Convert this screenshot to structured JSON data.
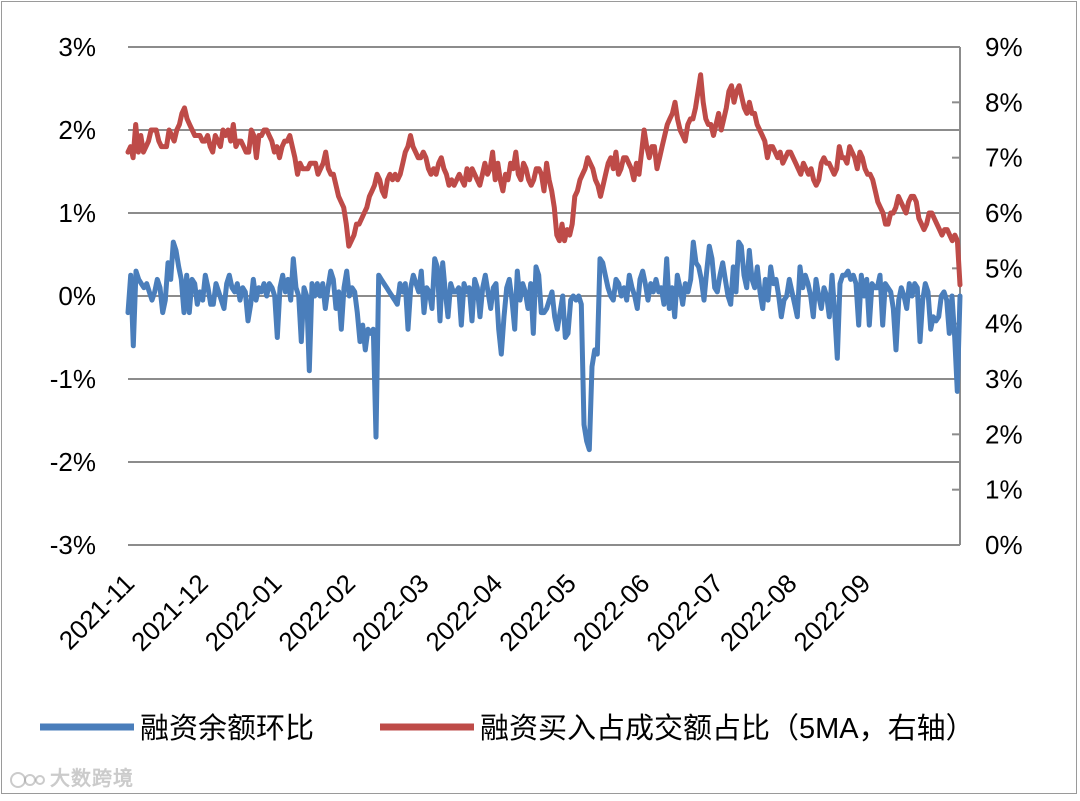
{
  "chart_data": {
    "type": "line",
    "x_ticks": [
      "2021-11",
      "2021-12",
      "2022-01",
      "2022-02",
      "2022-03",
      "2022-04",
      "2022-05",
      "2022-06",
      "2022-07",
      "2022-08",
      "2022-09"
    ],
    "y_left": {
      "ylim": [
        -0.03,
        0.03
      ],
      "ticks": [
        "-3%",
        "-2%",
        "-1%",
        "0%",
        "1%",
        "2%",
        "3%"
      ]
    },
    "y_right": {
      "ylim": [
        0,
        0.09
      ],
      "ticks": [
        "0%",
        "1%",
        "2%",
        "3%",
        "4%",
        "5%",
        "6%",
        "7%",
        "8%",
        "9%"
      ]
    },
    "grid": true,
    "legend_position": "bottom",
    "series": [
      {
        "name": "融资余额环比",
        "axis": "left",
        "color": "#4a7ebb",
        "values": [
          -0.002,
          0.0025,
          -0.006,
          0.003,
          0.002,
          0.0015,
          0.001,
          0.0015,
          0.0005,
          -0.0005,
          0.0005,
          0.002,
          0.001,
          -0.002,
          -0.0005,
          0.004,
          0.002,
          0.0065,
          0.0055,
          0.0035,
          0.002,
          -0.002,
          0.0025,
          -0.002,
          0.002,
          0.0015,
          -0.001,
          0.0005,
          -0.0005,
          0.0025,
          0.001,
          -0.001,
          -0.001,
          0.0015,
          0.0005,
          -0.0005,
          -0.0015,
          0.0015,
          0.0025,
          0.001,
          0.0005,
          0.0015,
          -0.0005,
          0.001,
          0.0005,
          -0.003,
          -0.001,
          0.002,
          -0.0005,
          0.001,
          0.0005,
          0.0015,
          0.0,
          0.0015,
          0.001,
          0.0,
          -0.005,
          0.001,
          0.0025,
          0.0005,
          0.002,
          -0.0005,
          0.0045,
          0.001,
          0.0,
          -0.0055,
          0.001,
          0.0,
          -0.009,
          0.0015,
          0.0,
          0.0015,
          0.0,
          0.0015,
          -0.0015,
          0.001,
          0.003,
          0.002,
          -0.0015,
          0.0005,
          -0.004,
          0.001,
          0.003,
          0.0,
          0.001,
          0.0005,
          -0.002,
          -0.0055,
          -0.0035,
          -0.0065,
          -0.004,
          -0.0045,
          -0.004,
          -0.017,
          0.0025,
          0.002,
          0.0015,
          0.001,
          0.0005,
          0.0,
          -0.0005,
          -0.001,
          0.0015,
          0.0005,
          0.0015,
          -0.004,
          0.001,
          0.0025,
          0.0015,
          0.0005,
          0.003,
          -0.002,
          0.001,
          0.0005,
          -0.0015,
          0.0045,
          0.0035,
          -0.003,
          0.004,
          0.0005,
          -0.0025,
          0.0015,
          0.0005,
          0.0005,
          0.001,
          -0.0035,
          0.0015,
          0.0005,
          0.001,
          -0.003,
          0.002,
          0.001,
          -0.0025,
          0.001,
          0.0025,
          0.0005,
          -0.0015,
          0.001,
          0.0015,
          -0.004,
          -0.007,
          -0.0025,
          0.001,
          0.002,
          -0.0005,
          -0.004,
          0.003,
          -0.0005,
          0.0015,
          0.0005,
          -0.0015,
          0.0015,
          -0.0045,
          0.0035,
          0.0025,
          -0.002,
          -0.002,
          -0.0015,
          -0.0005,
          0.0005,
          -0.0025,
          -0.004,
          -0.002,
          0.0,
          -0.005,
          -0.0045,
          -0.0005,
          0.0,
          -0.0005,
          0.0,
          -0.001,
          -0.0155,
          -0.0175,
          -0.0185,
          -0.0085,
          -0.0065,
          -0.007,
          0.0045,
          0.004,
          0.0025,
          0.001,
          0.0,
          -0.0005,
          0.002,
          0.0015,
          0.0,
          0.001,
          -0.0005,
          0.0025,
          0.001,
          0.0,
          -0.0015,
          0.002,
          0.003,
          0.0015,
          -0.0005,
          0.0015,
          0.0005,
          0.002,
          0.0005,
          0.001,
          -0.001,
          0.0045,
          -0.0015,
          0.001,
          -0.0025,
          0.0025,
          0.001,
          -0.001,
          0.0015,
          0.0005,
          0.002,
          0.0065,
          0.004,
          0.0035,
          0.002,
          -0.0005,
          0.003,
          0.006,
          0.0045,
          0.001,
          0.0005,
          0.0025,
          0.004,
          0.002,
          0.0,
          -0.001,
          0.0035,
          0.0005,
          0.0065,
          0.006,
          0.0025,
          0.001,
          0.0055,
          0.002,
          0.001,
          0.0035,
          0.0005,
          -0.0015,
          0.002,
          -0.0005,
          0.0035,
          0.0015,
          0.002,
          0.0,
          -0.0025,
          -0.0005,
          0.0,
          0.002,
          0.0005,
          -0.001,
          -0.0025,
          0.0035,
          0.001,
          0.0025,
          0.0015,
          0.0,
          -0.0025,
          0.002,
          0.0,
          -0.0015,
          0.001,
          0.0,
          -0.0025,
          0.0025,
          -0.002,
          -0.0075,
          0.0015,
          0.0025,
          0.0025,
          0.003,
          0.002,
          0.0025,
          0.0015,
          -0.0035,
          0.0025,
          0.0,
          0.002,
          -0.0035,
          0.0015,
          0.001,
          0.001,
          0.0025,
          -0.0035,
          0.0015,
          0.001,
          0.0005,
          -0.0015,
          -0.0065,
          -0.0005,
          0.001,
          0.0,
          -0.0015,
          0.0015,
          0.0,
          0.0015,
          0.001,
          -0.0055,
          -0.0005,
          0.0015,
          0.0005,
          -0.004,
          -0.0025,
          -0.003,
          -0.0025,
          0.0,
          0.0005,
          -0.0005,
          -0.0045,
          0.0,
          -0.005,
          -0.0115,
          0.0
        ]
      },
      {
        "name": "融资买入占成交额占比（5MA，右轴）",
        "axis": "right",
        "color": "#be4b48",
        "values": [
          0.071,
          0.072,
          0.07,
          0.076,
          0.071,
          0.074,
          0.071,
          0.072,
          0.073,
          0.075,
          0.075,
          0.075,
          0.073,
          0.072,
          0.072,
          0.072,
          0.075,
          0.074,
          0.073,
          0.075,
          0.076,
          0.078,
          0.079,
          0.077,
          0.076,
          0.075,
          0.074,
          0.074,
          0.074,
          0.073,
          0.073,
          0.074,
          0.072,
          0.071,
          0.074,
          0.073,
          0.072,
          0.075,
          0.074,
          0.075,
          0.073,
          0.076,
          0.072,
          0.073,
          0.073,
          0.072,
          0.071,
          0.071,
          0.075,
          0.074,
          0.07,
          0.074,
          0.074,
          0.075,
          0.075,
          0.074,
          0.073,
          0.071,
          0.072,
          0.07,
          0.072,
          0.073,
          0.073,
          0.074,
          0.072,
          0.07,
          0.067,
          0.069,
          0.068,
          0.068,
          0.068,
          0.069,
          0.069,
          0.069,
          0.067,
          0.068,
          0.069,
          0.071,
          0.068,
          0.067,
          0.067,
          0.065,
          0.063,
          0.062,
          0.061,
          0.058,
          0.054,
          0.055,
          0.056,
          0.058,
          0.058,
          0.059,
          0.06,
          0.061,
          0.063,
          0.064,
          0.065,
          0.067,
          0.066,
          0.064,
          0.063,
          0.066,
          0.067,
          0.066,
          0.067,
          0.066,
          0.067,
          0.069,
          0.071,
          0.072,
          0.074,
          0.072,
          0.071,
          0.07,
          0.07,
          0.071,
          0.07,
          0.068,
          0.067,
          0.068,
          0.067,
          0.069,
          0.07,
          0.068,
          0.067,
          0.065,
          0.066,
          0.065,
          0.066,
          0.067,
          0.066,
          0.065,
          0.068,
          0.066,
          0.068,
          0.067,
          0.066,
          0.065,
          0.067,
          0.069,
          0.067,
          0.068,
          0.071,
          0.066,
          0.069,
          0.066,
          0.064,
          0.067,
          0.066,
          0.069,
          0.068,
          0.071,
          0.067,
          0.066,
          0.069,
          0.068,
          0.066,
          0.065,
          0.066,
          0.068,
          0.068,
          0.067,
          0.064,
          0.069,
          0.066,
          0.064,
          0.061,
          0.056,
          0.055,
          0.058,
          0.055,
          0.057,
          0.056,
          0.058,
          0.063,
          0.064,
          0.066,
          0.067,
          0.068,
          0.07,
          0.069,
          0.068,
          0.066,
          0.065,
          0.063,
          0.065,
          0.067,
          0.069,
          0.07,
          0.068,
          0.071,
          0.067,
          0.068,
          0.07,
          0.07,
          0.069,
          0.068,
          0.066,
          0.069,
          0.067,
          0.071,
          0.075,
          0.072,
          0.07,
          0.072,
          0.072,
          0.068,
          0.07,
          0.072,
          0.074,
          0.076,
          0.077,
          0.078,
          0.08,
          0.077,
          0.075,
          0.074,
          0.073,
          0.076,
          0.077,
          0.077,
          0.079,
          0.082,
          0.085,
          0.08,
          0.077,
          0.076,
          0.076,
          0.074,
          0.076,
          0.078,
          0.075,
          0.077,
          0.079,
          0.082,
          0.083,
          0.08,
          0.082,
          0.083,
          0.081,
          0.079,
          0.078,
          0.08,
          0.078,
          0.078,
          0.076,
          0.075,
          0.074,
          0.073,
          0.07,
          0.072,
          0.072,
          0.071,
          0.07,
          0.071,
          0.069,
          0.07,
          0.071,
          0.071,
          0.07,
          0.069,
          0.068,
          0.067,
          0.069,
          0.068,
          0.067,
          0.068,
          0.066,
          0.065,
          0.066,
          0.069,
          0.07,
          0.069,
          0.069,
          0.068,
          0.067,
          0.068,
          0.072,
          0.07,
          0.07,
          0.069,
          0.072,
          0.071,
          0.07,
          0.068,
          0.071,
          0.07,
          0.068,
          0.067,
          0.067,
          0.066,
          0.064,
          0.062,
          0.061,
          0.06,
          0.058,
          0.058,
          0.06,
          0.06,
          0.061,
          0.063,
          0.062,
          0.061,
          0.06,
          0.062,
          0.063,
          0.063,
          0.062,
          0.059,
          0.058,
          0.057,
          0.058,
          0.06,
          0.06,
          0.059,
          0.058,
          0.057,
          0.056,
          0.057,
          0.057,
          0.056,
          0.055,
          0.056,
          0.055,
          0.047
        ]
      }
    ]
  },
  "legend": [
    {
      "label": "融资余额环比",
      "color": "#4a7ebb"
    },
    {
      "label": "融资买入占成交额占比（5MA，右轴）",
      "color": "#be4b48"
    }
  ],
  "watermark": "大数跨境"
}
